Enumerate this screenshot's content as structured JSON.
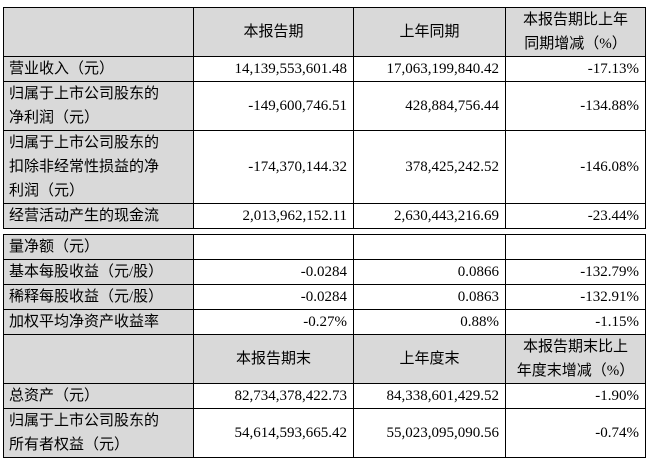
{
  "table1": {
    "headers": [
      "",
      "本报告期",
      "上年同期",
      "本报告期比上年同期增减（%）"
    ],
    "header4_lines": [
      "本报告期比上年",
      "同期增减（%）"
    ],
    "rows": [
      {
        "label": "营业收入（元）",
        "current": "14,139,553,601.48",
        "previous": "17,063,199,840.42",
        "change": "-17.13%"
      },
      {
        "label_lines": [
          "归属于上市公司股东的",
          "净利润（元）"
        ],
        "current": "-149,600,746.51",
        "previous": "428,884,756.44",
        "change": "-134.88%"
      },
      {
        "label_lines": [
          "归属于上市公司股东的",
          "扣除非经常性损益的净",
          "利润（元）"
        ],
        "current": "-174,370,144.32",
        "previous": "378,425,242.52",
        "change": "-146.08%"
      },
      {
        "label": "经营活动产生的现金流",
        "current": "2,013,962,152.11",
        "previous": "2,630,443,216.69",
        "change": "-23.44%"
      }
    ]
  },
  "table2": {
    "rows": [
      {
        "label": "量净额（元）",
        "current": "",
        "previous": "",
        "change": ""
      },
      {
        "label": "基本每股收益（元/股）",
        "current": "-0.0284",
        "previous": "0.0866",
        "change": "-132.79%"
      },
      {
        "label": "稀释每股收益（元/股）",
        "current": "-0.0284",
        "previous": "0.0863",
        "change": "-132.91%"
      },
      {
        "label": "加权平均净资产收益率",
        "current": "-0.27%",
        "previous": "0.88%",
        "change": "-1.15%"
      }
    ],
    "headers": [
      "",
      "本报告期末",
      "上年度末"
    ],
    "header4_lines": [
      "本报告期末比上",
      "年度末增减（%）"
    ],
    "rows2": [
      {
        "label": "总资产（元）",
        "current": "82,734,378,422.73",
        "previous": "84,338,601,429.52",
        "change": "-1.90%"
      },
      {
        "label_lines": [
          "归属于上市公司股东的",
          "所有者权益（元）"
        ],
        "current": "54,614,593,665.42",
        "previous": "55,023,095,090.56",
        "change": "-0.74%"
      }
    ]
  }
}
